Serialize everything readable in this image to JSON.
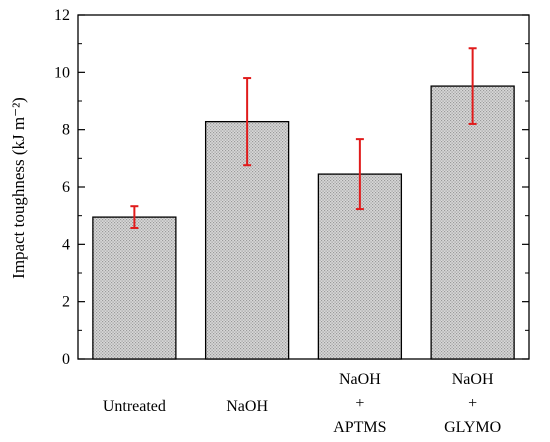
{
  "chart_data": {
    "type": "bar",
    "title": "",
    "xlabel": "",
    "ylabel": "Impact toughness (kJ m⁻²)",
    "ylim": [
      0,
      12
    ],
    "yticks": [
      0,
      2,
      4,
      6,
      8,
      10,
      12
    ],
    "grid": false,
    "legend": "none",
    "categories": [
      [
        "Untreated"
      ],
      [
        "NaOH"
      ],
      [
        "NaOH",
        "+",
        "APTMS"
      ],
      [
        "NaOH",
        "+",
        "GLYMO"
      ]
    ],
    "values": [
      4.95,
      8.28,
      6.45,
      9.52
    ],
    "errors": [
      0.38,
      1.52,
      1.22,
      1.32
    ],
    "colors": {
      "bar_fill": "#cfcfcf",
      "bar_pattern_dot": "#9a9a9a",
      "bar_edge": "#000000",
      "error_bar": "#e01b1b"
    }
  }
}
